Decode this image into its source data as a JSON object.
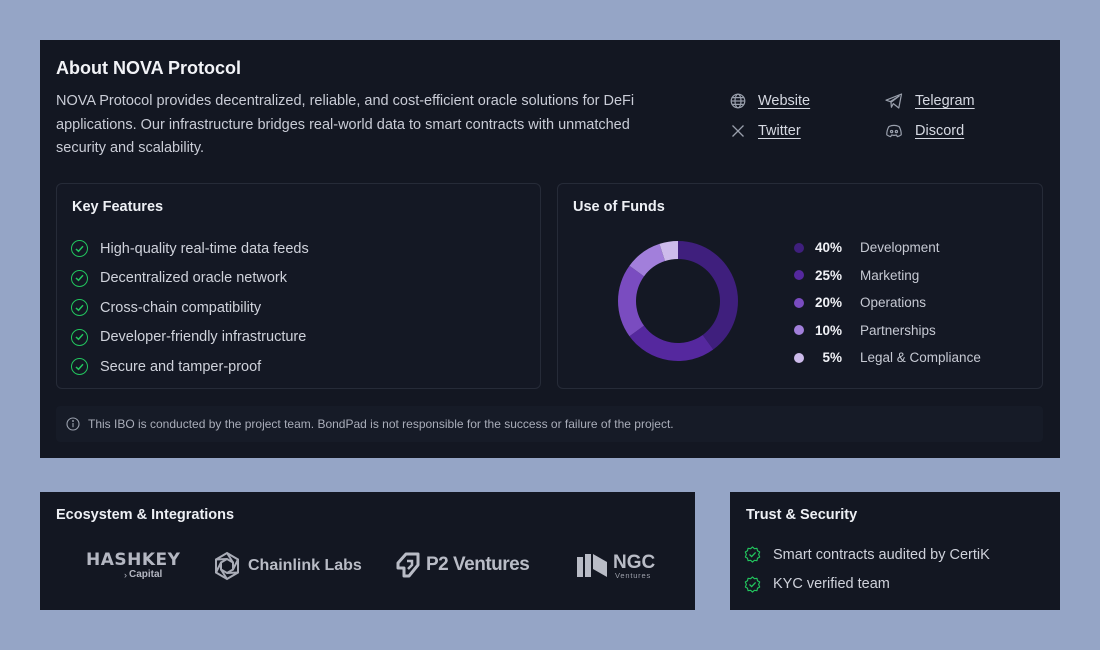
{
  "about": {
    "title": "About NOVA Protocol",
    "description": "NOVA Protocol provides decentralized, reliable, and cost-efficient oracle solutions for DeFi applications. Our infrastructure bridges real-world data to smart contracts with unmatched security and scalability.",
    "links": [
      {
        "label": "Website",
        "icon": "globe-icon"
      },
      {
        "label": "Telegram",
        "icon": "telegram-icon"
      },
      {
        "label": "Twitter",
        "icon": "x-icon"
      },
      {
        "label": "Discord",
        "icon": "discord-icon"
      }
    ]
  },
  "features": {
    "title": "Key Features",
    "items": [
      "High-quality real-time data feeds",
      "Decentralized oracle network",
      "Cross-chain compatibility",
      "Developer-friendly infrastructure",
      "Secure and tamper-proof"
    ],
    "check_color": "#22c55e"
  },
  "funds": {
    "title": "Use of Funds",
    "chart_data": {
      "type": "pie",
      "categories": [
        "Development",
        "Marketing",
        "Operations",
        "Partnerships",
        "Legal & Compliance"
      ],
      "values": [
        40,
        25,
        20,
        10,
        5
      ],
      "labels": [
        "40%",
        "25%",
        "20%",
        "10%",
        "5%"
      ],
      "colors": [
        "#3f1f7d",
        "#55289e",
        "#7a4cc0",
        "#a27fdb",
        "#cdbbeb"
      ]
    }
  },
  "disclaimer": "This IBO is conducted by the project team. BondPad is not responsible for the success or failure of the project.",
  "ecosystem": {
    "title": "Ecosystem & Integrations",
    "hashkey_main": "HASHKEY",
    "hashkey_sub": "Capital",
    "chainlink": "Chainlink Labs",
    "p2": "P2 Ventures",
    "ngc_main": "NGC",
    "ngc_sub": "Ventures"
  },
  "trust": {
    "title": "Trust & Security",
    "items": [
      "Smart contracts audited by CertiK",
      "KYC verified team"
    ]
  }
}
